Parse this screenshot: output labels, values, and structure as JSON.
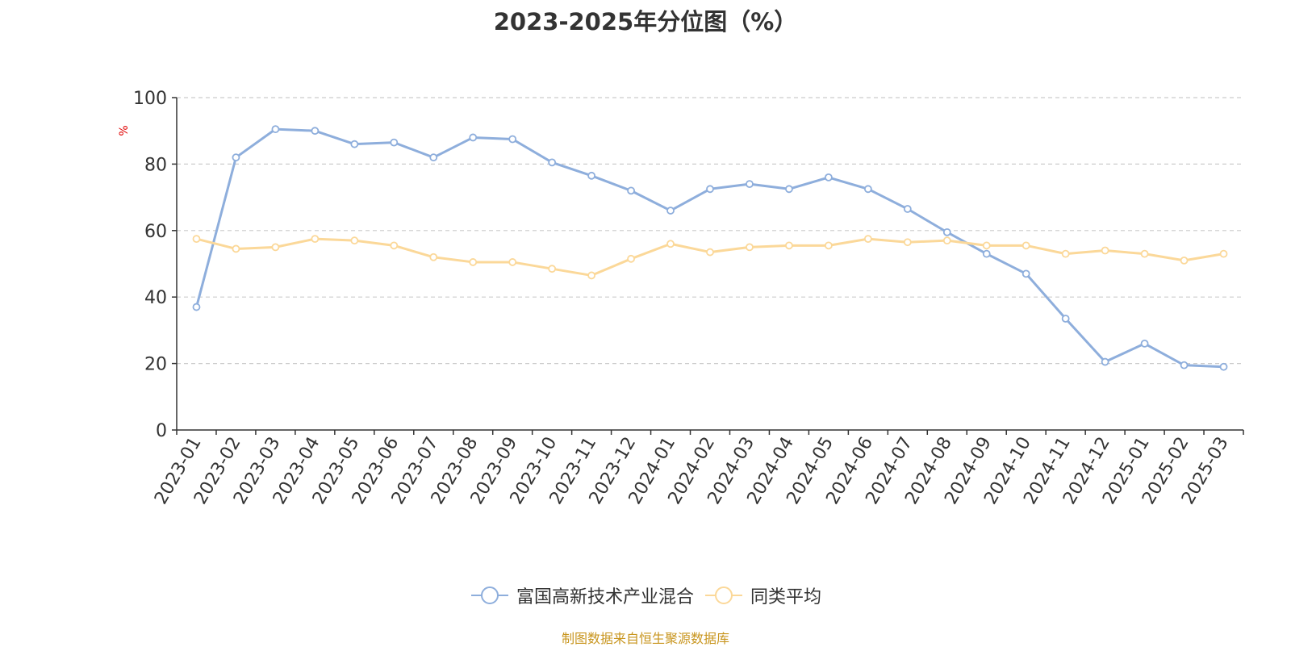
{
  "chart_data": {
    "type": "line",
    "title": "2023-2025年分位图（%）",
    "ylabel": "%",
    "xlabel": "",
    "ylim": [
      0,
      100
    ],
    "yticks": [
      0,
      20,
      40,
      60,
      80,
      100
    ],
    "grid": true,
    "legend_position": "bottom",
    "categories": [
      "2023-01",
      "2023-02",
      "2023-03",
      "2023-04",
      "2023-05",
      "2023-06",
      "2023-07",
      "2023-08",
      "2023-09",
      "2023-10",
      "2023-11",
      "2023-12",
      "2024-01",
      "2024-02",
      "2024-03",
      "2024-04",
      "2024-05",
      "2024-06",
      "2024-07",
      "2024-08",
      "2024-09",
      "2024-10",
      "2024-11",
      "2024-12",
      "2025-01",
      "2025-02",
      "2025-03"
    ],
    "series": [
      {
        "name": "富国高新技术产业混合",
        "color": "#8eaedc",
        "values": [
          37,
          82,
          90.5,
          90,
          86,
          86.5,
          82,
          88,
          87.5,
          80.5,
          76.5,
          72,
          66,
          72.5,
          74,
          72.5,
          76,
          72.5,
          66.5,
          59.5,
          53,
          47,
          33.5,
          20.5,
          26,
          19.5,
          19
        ]
      },
      {
        "name": "同类平均",
        "color": "#fbd899",
        "values": [
          57.5,
          54.5,
          55,
          57.5,
          57,
          55.5,
          52,
          50.5,
          50.5,
          48.5,
          46.5,
          51.5,
          56,
          53.5,
          55,
          55.5,
          55.5,
          57.5,
          56.5,
          57,
          55.5,
          55.5,
          53,
          54,
          53,
          51,
          53
        ]
      }
    ]
  },
  "legend": {
    "series_0_label": "富国高新技术产业混合",
    "series_1_label": "同类平均"
  },
  "source_note": "制图数据来自恒生聚源数据库",
  "colors": {
    "axis": "#333333",
    "grid": "#cccccc",
    "ylabel": "#e00000",
    "source": "#c8951e"
  }
}
